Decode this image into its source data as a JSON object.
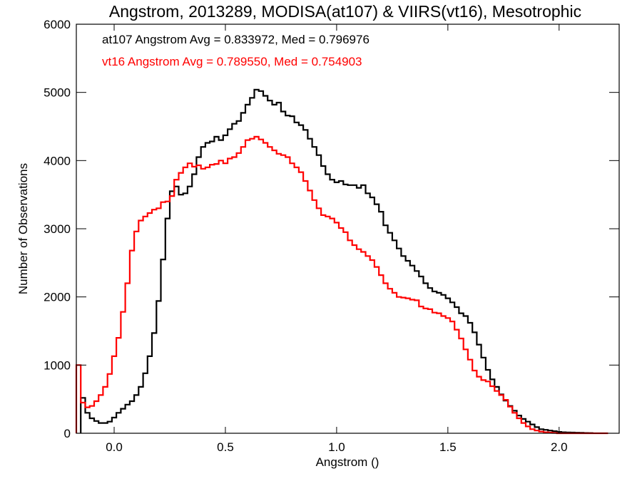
{
  "chart_data": {
    "type": "line",
    "title": "Angstrom, 2013289, MODISA(at107) & VIIRS(vt16), Mesotrophic",
    "xlabel": "Angstrom ()",
    "ylabel": "Number of Observations",
    "xlim": [
      -0.17,
      2.27
    ],
    "ylim": [
      0,
      6000
    ],
    "x_ticks": [
      0.0,
      0.5,
      1.0,
      1.5,
      2.0
    ],
    "x_tick_labels": [
      "0.0",
      "0.5",
      "1.0",
      "1.5",
      "2.0"
    ],
    "y_ticks": [
      0,
      1000,
      2000,
      3000,
      4000,
      5000,
      6000
    ],
    "y_tick_labels": [
      "0",
      "1000",
      "2000",
      "3000",
      "4000",
      "5000",
      "6000"
    ],
    "grid": false,
    "step": true,
    "annotations": [
      {
        "text": "at107 Angstrom Avg = 0.833972, Med = 0.796976",
        "color": "#000000"
      },
      {
        "text": "vt16 Angstrom Avg = 0.789550, Med = 0.754903",
        "color": "#ff0000"
      }
    ],
    "series": [
      {
        "color": "#000000",
        "x": [
          -0.14,
          -0.12,
          -0.1,
          -0.08,
          -0.06,
          -0.04,
          -0.02,
          0.0,
          0.02,
          0.04,
          0.06,
          0.08,
          0.1,
          0.12,
          0.14,
          0.16,
          0.18,
          0.2,
          0.22,
          0.24,
          0.26,
          0.28,
          0.3,
          0.32,
          0.34,
          0.36,
          0.38,
          0.4,
          0.42,
          0.44,
          0.46,
          0.48,
          0.5,
          0.52,
          0.54,
          0.56,
          0.58,
          0.6,
          0.62,
          0.64,
          0.66,
          0.68,
          0.7,
          0.72,
          0.74,
          0.76,
          0.78,
          0.8,
          0.82,
          0.84,
          0.86,
          0.88,
          0.9,
          0.92,
          0.94,
          0.96,
          0.98,
          1.0,
          1.02,
          1.04,
          1.06,
          1.08,
          1.1,
          1.12,
          1.14,
          1.16,
          1.18,
          1.2,
          1.22,
          1.24,
          1.26,
          1.28,
          1.3,
          1.32,
          1.34,
          1.36,
          1.38,
          1.4,
          1.42,
          1.44,
          1.46,
          1.48,
          1.5,
          1.52,
          1.54,
          1.56,
          1.58,
          1.6,
          1.62,
          1.64,
          1.66,
          1.68,
          1.7,
          1.72,
          1.74,
          1.76,
          1.78,
          1.8,
          1.82,
          1.84,
          1.86,
          1.88,
          1.9,
          1.92,
          1.94,
          1.96,
          1.98,
          2.0,
          2.02,
          2.04,
          2.06,
          2.08,
          2.1,
          2.12,
          2.14
        ],
        "values": [
          520,
          300,
          220,
          180,
          150,
          150,
          170,
          230,
          300,
          360,
          420,
          470,
          560,
          680,
          880,
          1130,
          1470,
          1940,
          2550,
          3150,
          3550,
          3620,
          3500,
          3520,
          3620,
          3800,
          4050,
          4200,
          4260,
          4280,
          4350,
          4300,
          4370,
          4460,
          4540,
          4580,
          4700,
          4820,
          4920,
          5040,
          5020,
          4950,
          4880,
          4820,
          4850,
          4720,
          4660,
          4650,
          4560,
          4520,
          4450,
          4320,
          4200,
          4080,
          3920,
          3800,
          3720,
          3680,
          3700,
          3650,
          3640,
          3640,
          3600,
          3640,
          3520,
          3460,
          3360,
          3250,
          3050,
          2940,
          2830,
          2710,
          2600,
          2530,
          2460,
          2380,
          2300,
          2200,
          2130,
          2080,
          2060,
          2030,
          1980,
          1920,
          1850,
          1760,
          1720,
          1620,
          1480,
          1300,
          1110,
          930,
          790,
          680,
          570,
          480,
          400,
          330,
          260,
          210,
          170,
          130,
          90,
          60,
          50,
          40,
          30,
          20,
          15,
          12,
          10,
          8,
          6,
          4,
          3
        ]
      },
      {
        "color": "#ff0000",
        "x": [
          -0.16,
          -0.14,
          -0.12,
          -0.1,
          -0.08,
          -0.06,
          -0.04,
          -0.02,
          0.0,
          0.02,
          0.04,
          0.06,
          0.08,
          0.1,
          0.12,
          0.14,
          0.16,
          0.18,
          0.2,
          0.22,
          0.24,
          0.26,
          0.28,
          0.3,
          0.32,
          0.34,
          0.36,
          0.38,
          0.4,
          0.42,
          0.44,
          0.46,
          0.48,
          0.5,
          0.52,
          0.54,
          0.56,
          0.58,
          0.6,
          0.62,
          0.64,
          0.66,
          0.68,
          0.7,
          0.72,
          0.74,
          0.76,
          0.78,
          0.8,
          0.82,
          0.84,
          0.86,
          0.88,
          0.9,
          0.92,
          0.94,
          0.96,
          0.98,
          1.0,
          1.02,
          1.04,
          1.06,
          1.08,
          1.1,
          1.12,
          1.14,
          1.16,
          1.18,
          1.2,
          1.22,
          1.24,
          1.26,
          1.28,
          1.3,
          1.32,
          1.34,
          1.36,
          1.38,
          1.4,
          1.42,
          1.44,
          1.46,
          1.48,
          1.5,
          1.52,
          1.54,
          1.56,
          1.58,
          1.6,
          1.62,
          1.64,
          1.66,
          1.68,
          1.7,
          1.72,
          1.74,
          1.76,
          1.78,
          1.8,
          1.82,
          1.84,
          1.86,
          1.88,
          1.9,
          1.92,
          1.94,
          1.96,
          1.98,
          2.0,
          2.02,
          2.04,
          2.06,
          2.08,
          2.1,
          2.12,
          2.14
        ],
        "values": [
          1000,
          450,
          380,
          400,
          470,
          560,
          680,
          870,
          1130,
          1400,
          1780,
          2200,
          2680,
          2960,
          3120,
          3180,
          3230,
          3280,
          3300,
          3390,
          3400,
          3480,
          3720,
          3820,
          3900,
          3960,
          3910,
          3930,
          3880,
          3900,
          3940,
          3950,
          4000,
          3960,
          4030,
          4050,
          4110,
          4200,
          4300,
          4320,
          4350,
          4310,
          4260,
          4200,
          4150,
          4100,
          4080,
          4050,
          3960,
          3900,
          3830,
          3700,
          3560,
          3420,
          3300,
          3200,
          3180,
          3150,
          3090,
          3010,
          2950,
          2830,
          2760,
          2700,
          2660,
          2600,
          2540,
          2440,
          2320,
          2200,
          2120,
          2060,
          2000,
          1990,
          1980,
          1960,
          1950,
          1860,
          1830,
          1820,
          1770,
          1760,
          1720,
          1690,
          1640,
          1520,
          1390,
          1230,
          1080,
          920,
          830,
          780,
          760,
          690,
          620,
          560,
          490,
          390,
          300,
          220,
          150,
          100,
          60,
          40,
          25,
          15,
          10,
          5,
          0,
          0,
          0,
          0,
          0,
          0,
          0,
          0
        ]
      }
    ]
  }
}
